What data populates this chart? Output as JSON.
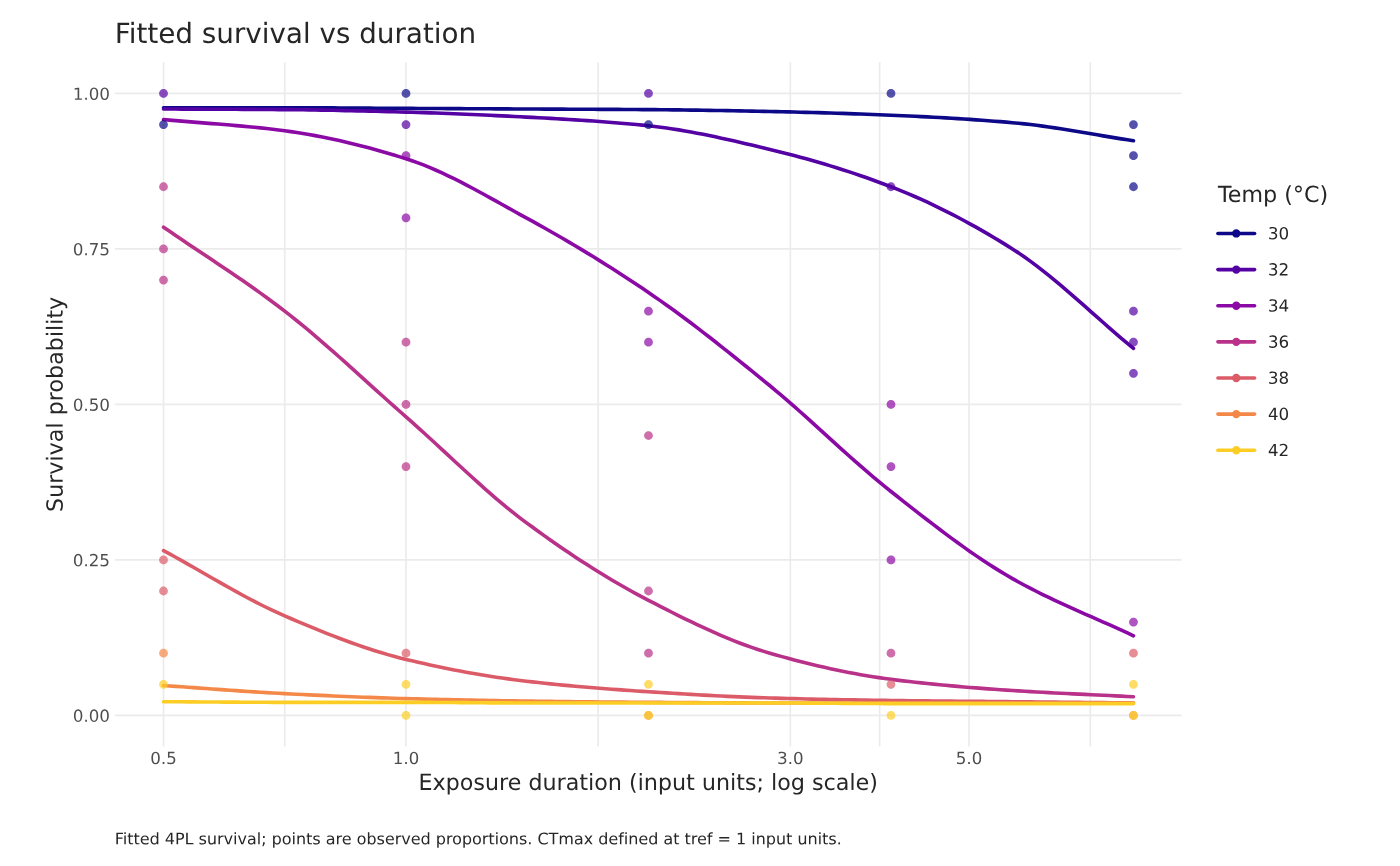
{
  "chart_data": {
    "type": "line",
    "title": "Fitted survival vs duration",
    "xlabel": "Exposure duration (input units; log scale)",
    "ylabel": "Survival probability",
    "legend_title": "Temp (°C)",
    "annotations": [
      "Fitted 4PL survival; points are observed proportions. CTmax defined at tref = 1 input units."
    ],
    "log": "x",
    "grid": true,
    "legend": "right",
    "xlim": [
      0.435,
      9.18
    ],
    "xticks": [
      0.5,
      {
        "value": 0.707,
        "label": null
      },
      {
        "value": 1,
        "label": "1.0"
      },
      {
        "value": 1.732,
        "label": null
      },
      {
        "value": 3,
        "label": "3.0"
      },
      {
        "value": 3.873,
        "label": null
      },
      {
        "value": 5,
        "label": "5.0"
      },
      {
        "value": 7.071,
        "label": null
      }
    ],
    "ylim": [
      -0.05,
      1.05
    ],
    "yticks": [
      {
        "value": 0,
        "label": "0.00"
      },
      0.25,
      {
        "value": 0.5,
        "label": "0.50"
      },
      0.75,
      {
        "value": 1,
        "label": "1.00"
      }
    ],
    "series": [
      {
        "name": "30",
        "color": "#0d0887",
        "x": [
          0.5,
          0.707,
          1,
          1.41,
          2,
          2.83,
          4,
          5.66,
          8
        ],
        "values": [
          0.977,
          0.977,
          0.976,
          0.975,
          0.974,
          0.971,
          0.965,
          0.953,
          0.924
        ]
      },
      {
        "name": "32",
        "color": "#5402a3",
        "x": [
          0.5,
          0.707,
          1,
          1.41,
          2,
          2.83,
          4,
          5.66,
          8
        ],
        "values": [
          0.975,
          0.974,
          0.97,
          0.962,
          0.948,
          0.91,
          0.85,
          0.75,
          0.59
        ]
      },
      {
        "name": "34",
        "color": "#8b0aa5",
        "x": [
          0.5,
          0.707,
          1,
          1.41,
          2,
          2.83,
          4,
          5.66,
          8
        ],
        "values": [
          0.958,
          0.94,
          0.895,
          0.8,
          0.68,
          0.53,
          0.36,
          0.22,
          0.128
        ]
      },
      {
        "name": "36",
        "color": "#b93289",
        "x": [
          0.5,
          0.707,
          1,
          1.41,
          2,
          2.83,
          4,
          5.66,
          8
        ],
        "values": [
          0.785,
          0.65,
          0.48,
          0.31,
          0.185,
          0.1,
          0.058,
          0.04,
          0.03
        ]
      },
      {
        "name": "38",
        "color": "#db5c68",
        "x": [
          0.5,
          0.707,
          1,
          1.41,
          2,
          2.83,
          4,
          5.66,
          8
        ],
        "values": [
          0.265,
          0.16,
          0.09,
          0.055,
          0.038,
          0.028,
          0.024,
          0.022,
          0.02
        ]
      },
      {
        "name": "40",
        "color": "#f48849",
        "x": [
          0.5,
          0.707,
          1,
          1.41,
          2,
          2.83,
          4,
          5.66,
          8
        ],
        "values": [
          0.048,
          0.035,
          0.027,
          0.023,
          0.021,
          0.02,
          0.02,
          0.02,
          0.02
        ]
      },
      {
        "name": "42",
        "color": "#fcce25",
        "x": [
          0.5,
          0.707,
          1,
          1.41,
          2,
          2.83,
          4,
          5.66,
          8
        ],
        "values": [
          0.022,
          0.021,
          0.021,
          0.02,
          0.02,
          0.02,
          0.019,
          0.019,
          0.019
        ]
      },
      {
        "type": "scatter",
        "marker": "circle",
        "color": "#0d0887",
        "x": [
          0.5,
          1,
          2,
          4,
          8,
          8,
          8
        ],
        "values": [
          0.95,
          1.0,
          0.95,
          1.0,
          0.95,
          0.9,
          0.85
        ]
      },
      {
        "type": "scatter",
        "marker": "circle",
        "color": "#5402a3",
        "x": [
          0.5,
          1,
          2,
          4,
          8,
          8,
          8
        ],
        "values": [
          1.0,
          0.95,
          1.0,
          0.85,
          0.65,
          0.6,
          0.55
        ]
      },
      {
        "type": "scatter",
        "marker": "circle",
        "color": "#8b0aa5",
        "x": [
          1,
          1,
          2,
          2,
          4,
          4,
          4,
          8
        ],
        "values": [
          0.9,
          0.8,
          0.65,
          0.6,
          0.5,
          0.4,
          0.25,
          0.15
        ]
      },
      {
        "type": "scatter",
        "marker": "circle",
        "color": "#b93289",
        "x": [
          0.5,
          0.5,
          0.5,
          1,
          1,
          1,
          2,
          2,
          2,
          4
        ],
        "values": [
          0.85,
          0.75,
          0.7,
          0.6,
          0.5,
          0.4,
          0.45,
          0.2,
          0.1,
          0.1
        ]
      },
      {
        "type": "scatter",
        "marker": "circle",
        "color": "#db5c68",
        "x": [
          0.5,
          0.5,
          1,
          4,
          8
        ],
        "values": [
          0.25,
          0.2,
          0.1,
          0.05,
          0.1
        ]
      },
      {
        "type": "scatter",
        "marker": "circle",
        "color": "#f48849",
        "x": [
          0.5,
          2,
          8
        ],
        "values": [
          0.1,
          0.0,
          0.0
        ]
      },
      {
        "type": "scatter",
        "marker": "circle",
        "color": "#fcce25",
        "x": [
          0.5,
          1,
          1,
          2,
          2,
          4,
          8,
          8
        ],
        "values": [
          0.05,
          0.05,
          0.0,
          0.05,
          0.0,
          0.0,
          0.05,
          0.0
        ]
      }
    ]
  }
}
